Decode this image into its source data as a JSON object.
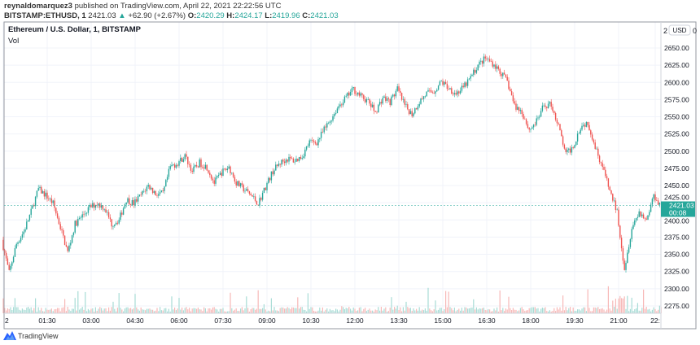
{
  "header": {
    "author": "reynaldomarquez3",
    "published": "published on TradingView.com, April 22, 2021 22:22:56 UTC",
    "symbol": "BITSTAMP:ETHUSD, 1",
    "last": "2421.03",
    "change": "+62.90 (+2.67%)",
    "o_label": "O:",
    "o": "2420.29",
    "h_label": "H:",
    "h": "2424.17",
    "l_label": "L:",
    "l": "2419.96",
    "c_label": "C:",
    "c": "2421.03"
  },
  "legend": {
    "title": "Ethereum / U.S. Dollar, 1, BITSTAMP",
    "volume": "Vol"
  },
  "footer": {
    "brand": "TradingView"
  },
  "colors": {
    "up": "#26a69a",
    "down": "#ef5350",
    "vol_up": "#a8dcd6",
    "vol_down": "#f7b9b8",
    "grid": "#f0f3fa"
  },
  "chart_data": {
    "type": "candlestick",
    "title": "Ethereum / U.S. Dollar, 1, BITSTAMP",
    "currency": "USD",
    "ylim": [
      2262,
      2670
    ],
    "y_ticks": [
      "2650.00",
      "2625.00",
      "2600.00",
      "2575.00",
      "2550.00",
      "2525.00",
      "2500.00",
      "2475.00",
      "2450.00",
      "2425.00",
      "2400.00",
      "2375.00",
      "2350.00",
      "2325.00",
      "2300.00",
      "2275.00"
    ],
    "y_tick_values": [
      2650,
      2625,
      2600,
      2575,
      2550,
      2525,
      2500,
      2475,
      2450,
      2425,
      2400,
      2375,
      2350,
      2325,
      2300,
      2275
    ],
    "x_ticks": [
      "2",
      "01:30",
      "03:00",
      "04:30",
      "06:00",
      "07:30",
      "09:00",
      "10:30",
      "12:00",
      "13:30",
      "15:00",
      "16:30",
      "18:00",
      "19:30",
      "21:00",
      "22:"
    ],
    "x_tick_hours": [
      0,
      1.5,
      3,
      4.5,
      6,
      7.5,
      9,
      10.5,
      12,
      13.5,
      15,
      16.5,
      18,
      19.5,
      21,
      22.25
    ],
    "interval_minutes": 15,
    "close_every_15min": [
      2371,
      2323,
      2365,
      2383,
      2412,
      2445,
      2436,
      2424,
      2389,
      2353,
      2394,
      2406,
      2418,
      2424,
      2418,
      2394,
      2400,
      2430,
      2424,
      2436,
      2450,
      2438,
      2438,
      2477,
      2483,
      2493,
      2471,
      2483,
      2477,
      2454,
      2469,
      2477,
      2454,
      2445,
      2436,
      2424,
      2448,
      2471,
      2483,
      2489,
      2486,
      2493,
      2513,
      2513,
      2531,
      2548,
      2566,
      2578,
      2590,
      2580,
      2572,
      2557,
      2578,
      2572,
      2590,
      2566,
      2554,
      2572,
      2584,
      2587,
      2601,
      2592,
      2584,
      2592,
      2607,
      2625,
      2635,
      2628,
      2616,
      2601,
      2566,
      2557,
      2531,
      2543,
      2566,
      2568,
      2536,
      2495,
      2507,
      2536,
      2542,
      2507,
      2477,
      2442,
      2412,
      2329,
      2389,
      2412,
      2400,
      2436,
      2421
    ],
    "last_price_label": "2421.03",
    "countdown_label": "00:08",
    "axis_partial_label": "2",
    "axis_partial_label_end": "0"
  }
}
